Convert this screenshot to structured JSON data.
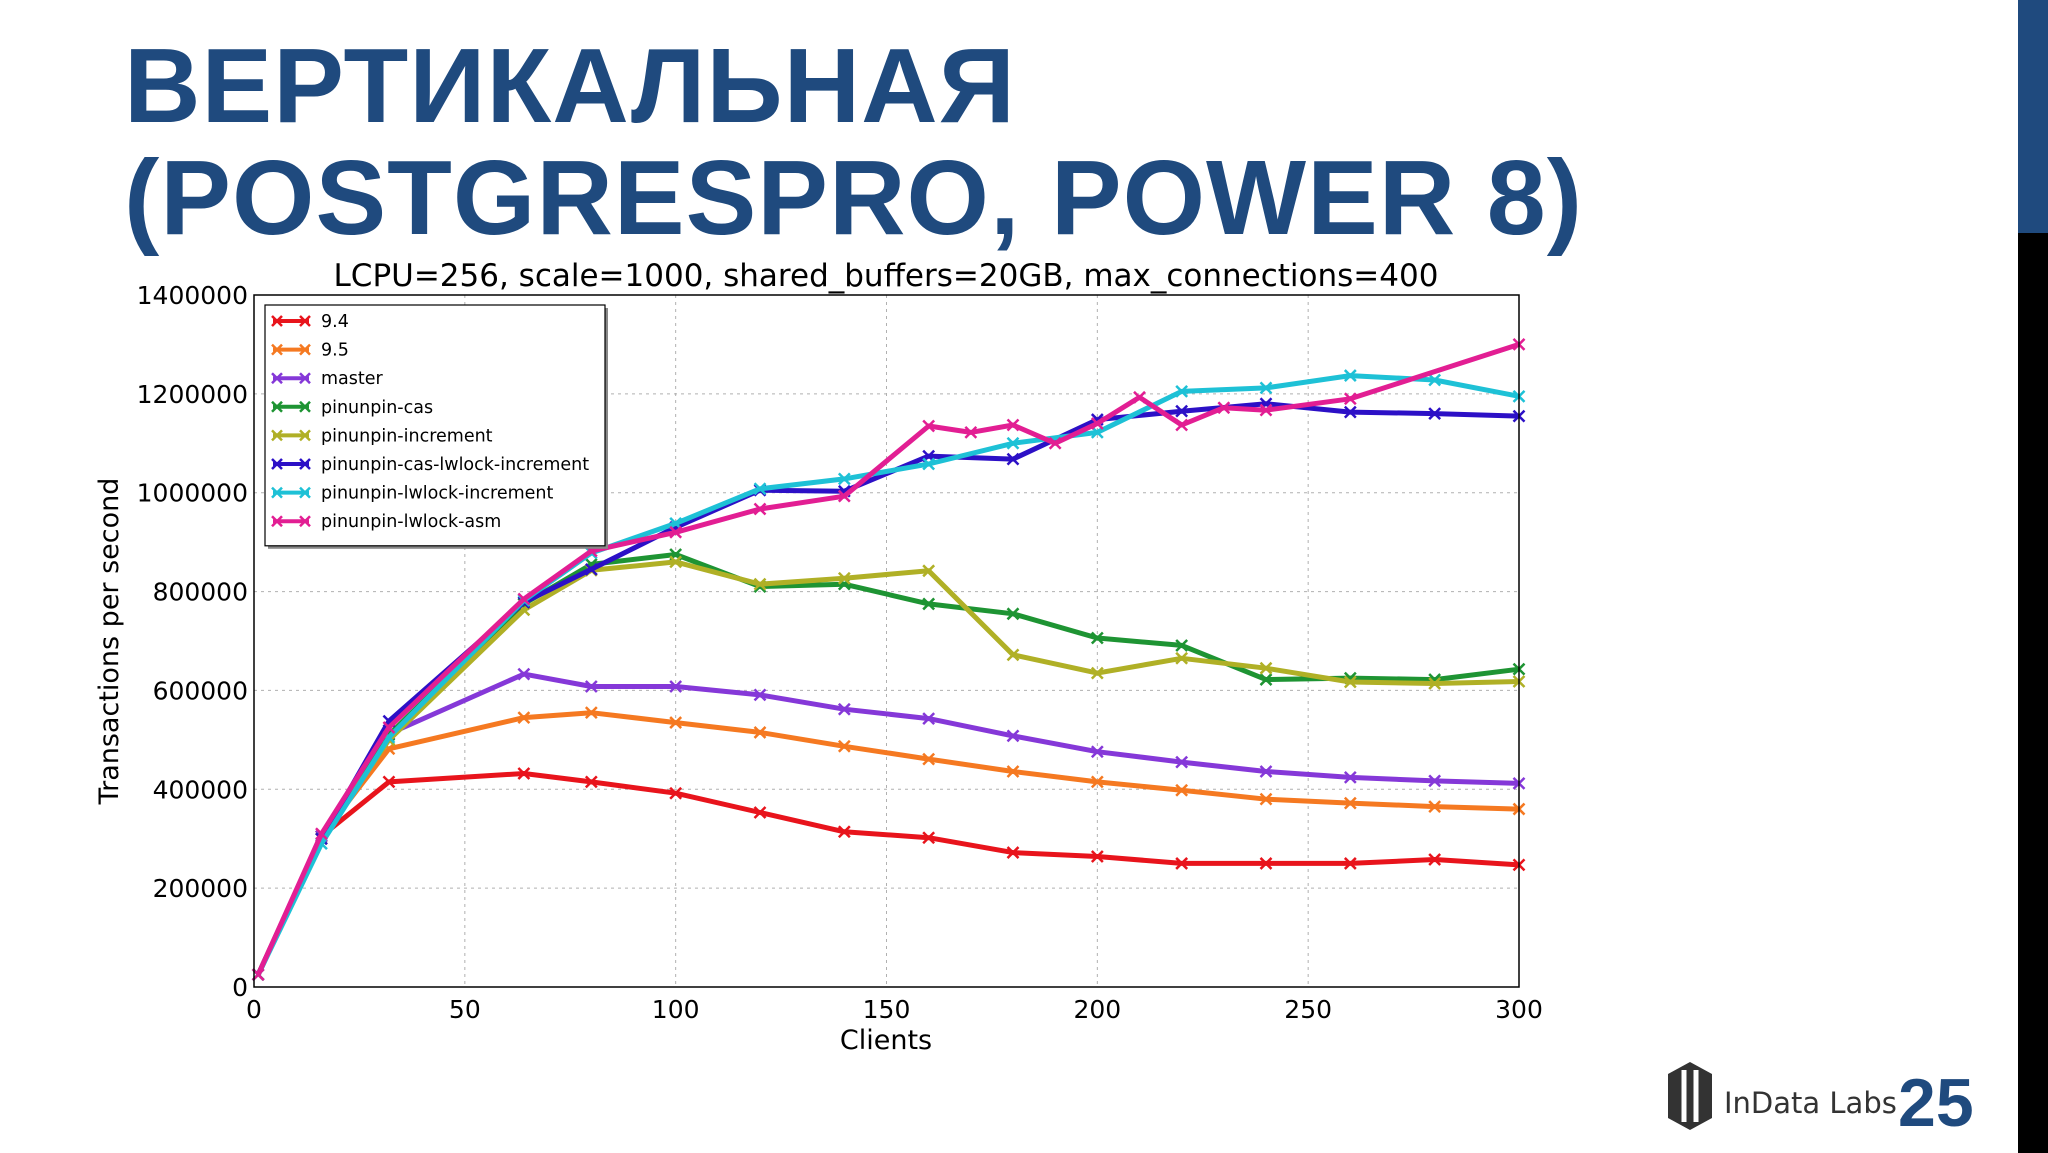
{
  "slide": {
    "title_line1": "ВЕРТИКАЛЬНАЯ",
    "title_line2": "(POSTGRESPRO, POWER 8)",
    "page_number": "25",
    "logo_text": "InData Labs",
    "title_color": "#1f4a7e"
  },
  "chart_data": {
    "type": "line",
    "title": "LCPU=256, scale=1000, shared_buffers=20GB, max_connections=400",
    "xlabel": "Clients",
    "ylabel": "Transactions per second",
    "xlim": [
      0,
      300
    ],
    "ylim": [
      0,
      1400000
    ],
    "xticks": [
      0,
      50,
      100,
      150,
      200,
      250,
      300
    ],
    "yticks": [
      0,
      200000,
      400000,
      600000,
      800000,
      1000000,
      1200000,
      1400000
    ],
    "grid": true,
    "legend_position": "top-left",
    "series": [
      {
        "name": "9.4",
        "color": "#e8141c",
        "x": [
          1,
          16,
          32,
          64,
          80,
          100,
          120,
          140,
          160,
          180,
          200,
          220,
          240,
          260,
          280,
          300
        ],
        "y": [
          25000,
          305000,
          415000,
          432000,
          415000,
          392000,
          353000,
          314000,
          302000,
          272000,
          264000,
          250000,
          250000,
          250000,
          258000,
          247000
        ]
      },
      {
        "name": "9.5",
        "color": "#f57921",
        "x": [
          1,
          16,
          32,
          64,
          80,
          100,
          120,
          140,
          160,
          180,
          200,
          220,
          240,
          260,
          280,
          300
        ],
        "y": [
          25000,
          305000,
          482000,
          545000,
          555000,
          535000,
          515000,
          487000,
          461000,
          436000,
          415000,
          398000,
          380000,
          372000,
          365000,
          360000
        ]
      },
      {
        "name": "master",
        "color": "#8538d8",
        "x": [
          1,
          16,
          32,
          64,
          80,
          100,
          120,
          140,
          160,
          180,
          200,
          220,
          240,
          260,
          280,
          300
        ],
        "y": [
          25000,
          305000,
          512000,
          633000,
          608000,
          608000,
          591000,
          562000,
          543000,
          508000,
          476000,
          455000,
          436000,
          424000,
          417000,
          412000
        ]
      },
      {
        "name": "pinunpin-cas",
        "color": "#1e9433",
        "x": [
          1,
          16,
          32,
          64,
          80,
          100,
          120,
          140,
          160,
          180,
          200,
          220,
          240,
          260,
          280,
          300
        ],
        "y": [
          25000,
          300000,
          510000,
          775000,
          855000,
          875000,
          810000,
          815000,
          775000,
          755000,
          706000,
          691000,
          622000,
          625000,
          622000,
          643000
        ]
      },
      {
        "name": "pinunpin-increment",
        "color": "#b0b026",
        "x": [
          1,
          16,
          32,
          64,
          80,
          100,
          120,
          140,
          160,
          180,
          200,
          220,
          240,
          260,
          280,
          300
        ],
        "y": [
          25000,
          300000,
          500000,
          763000,
          843000,
          860000,
          815000,
          827000,
          842000,
          672000,
          635000,
          665000,
          645000,
          617000,
          614000,
          618000
        ]
      },
      {
        "name": "pinunpin-cas-lwlock-increment",
        "color": "#2c10c6",
        "x": [
          1,
          16,
          32,
          64,
          80,
          100,
          120,
          140,
          160,
          180,
          200,
          220,
          240,
          260,
          280,
          300
        ],
        "y": [
          25000,
          300000,
          538000,
          778000,
          845000,
          930000,
          1005000,
          1003000,
          1074000,
          1068000,
          1148000,
          1165000,
          1180000,
          1163000,
          1160000,
          1155000
        ]
      },
      {
        "name": "pinunpin-lwlock-increment",
        "color": "#1ec1d6",
        "x": [
          1,
          16,
          32,
          64,
          80,
          100,
          120,
          140,
          160,
          180,
          200,
          220,
          240,
          260,
          280,
          300
        ],
        "y": [
          25000,
          290000,
          505000,
          782000,
          878000,
          938000,
          1008000,
          1028000,
          1058000,
          1100000,
          1122000,
          1205000,
          1212000,
          1237000,
          1228000,
          1195000
        ]
      },
      {
        "name": "pinunpin-lwlock-asm",
        "color": "#e21e93",
        "x": [
          1,
          16,
          32,
          64,
          80,
          100,
          120,
          140,
          160,
          170,
          180,
          190,
          200,
          210,
          220,
          230,
          240,
          260,
          300
        ],
        "y": [
          25000,
          310000,
          525000,
          785000,
          882000,
          920000,
          967000,
          993000,
          1135000,
          1122000,
          1137000,
          1100000,
          1140000,
          1193000,
          1137000,
          1172000,
          1167000,
          1190000,
          1300000
        ]
      }
    ]
  }
}
